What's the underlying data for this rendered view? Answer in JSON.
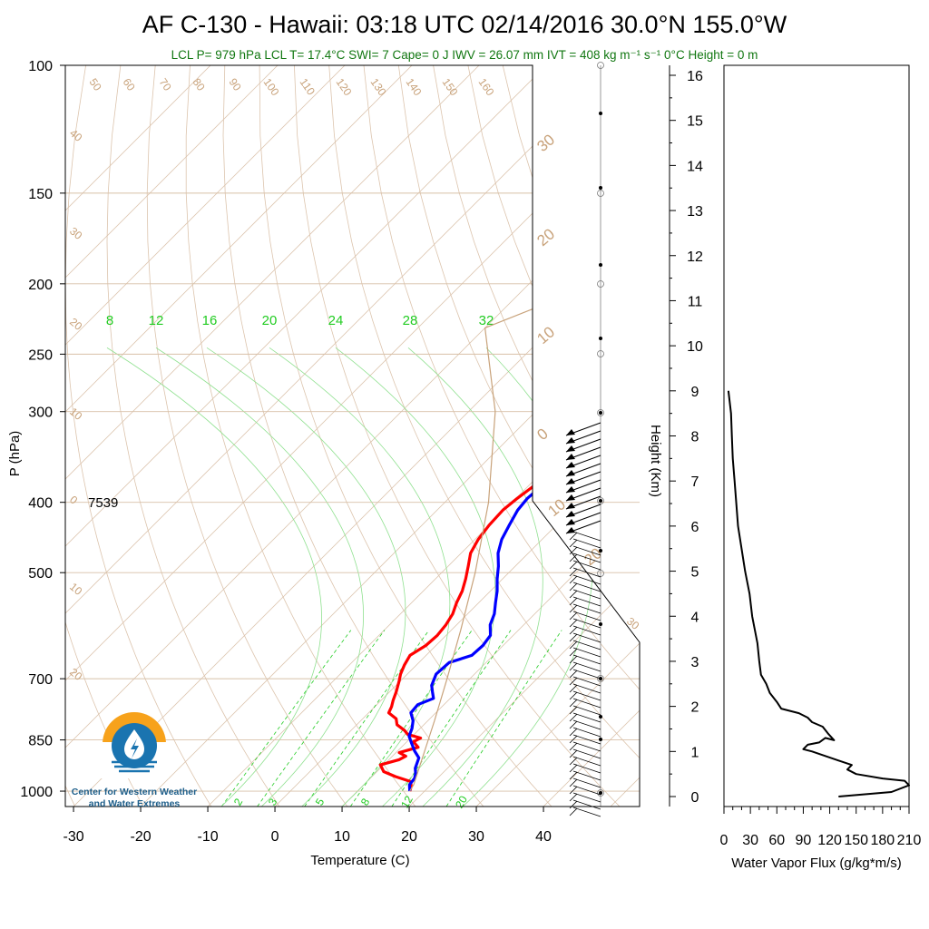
{
  "title": "AF C-130 - Hawaii: 03:18 UTC 02/14/2016  30.0°N 155.0°W",
  "subtitle": "LCL P= 979 hPa  LCL T= 17.4°C  SWI= 7  Cape= 0 J  IWV = 26.07 mm  IVT = 408 kg m⁻¹ s⁻¹  0°C Height = 0 m",
  "annotation_7539": "7539",
  "logo_text_line1": "Center for Western Weather",
  "logo_text_line2": "and Water Extremes",
  "colors": {
    "temperature": "#ff0000",
    "dewpoint": "#0000ff",
    "parcel": "#c8a27a",
    "mixing_ratio": "#22cc22",
    "flux": "#000000"
  },
  "chart_data": [
    {
      "type": "line",
      "title": "AF C-130 - Hawaii: 03:18 UTC 02/14/2016  30.0°N 155.0°W",
      "xlabel": "Temperature (C)",
      "ylabel": "P (hPa)",
      "x_ticks": [
        "-30",
        "-20",
        "-10",
        "0",
        "10",
        "20",
        "30",
        "40"
      ],
      "y_ticks": [
        "100",
        "150",
        "200",
        "250",
        "300",
        "400",
        "500",
        "700",
        "850",
        "1000"
      ],
      "y_scale": "log",
      "xlim": [
        -33,
        52
      ],
      "ylim": [
        1050,
        100
      ],
      "right_axis": {
        "label": "Height (Km)",
        "ticks": [
          "0",
          "1",
          "2",
          "3",
          "4",
          "5",
          "6",
          "7",
          "8",
          "9",
          "10",
          "11",
          "12",
          "13",
          "14",
          "15",
          "16"
        ]
      },
      "dry_adiabat_labels": [
        "50",
        "60",
        "70",
        "80",
        "90",
        "100",
        "110",
        "120",
        "130",
        "140",
        "150",
        "160"
      ],
      "isotherm_labels": [
        "40",
        "30",
        "20",
        "10",
        "0",
        "10",
        "20",
        "30"
      ],
      "mixing_ratio_labels_top": [
        "8",
        "12",
        "16",
        "20",
        "24",
        "28",
        "32"
      ],
      "mixing_ratio_labels_bottom": [
        "2",
        "3",
        "5",
        "8",
        "12",
        "20"
      ],
      "series": [
        {
          "name": "Temperature",
          "points": [
            [
              17.8,
              1000
            ],
            [
              17.3,
              985
            ],
            [
              16.5,
              970
            ],
            [
              13.5,
              955
            ],
            [
              11.0,
              940
            ],
            [
              9.5,
              920
            ],
            [
              11.5,
              905
            ],
            [
              12.0,
              895
            ],
            [
              10.5,
              885
            ],
            [
              12.5,
              870
            ],
            [
              11.0,
              855
            ],
            [
              11.5,
              845
            ],
            [
              9.0,
              835
            ],
            [
              8.0,
              825
            ],
            [
              6.0,
              810
            ],
            [
              5.0,
              795
            ],
            [
              3.0,
              780
            ],
            [
              2.5,
              765
            ],
            [
              1.8,
              750
            ],
            [
              1.0,
              730
            ],
            [
              -0.2,
              705
            ],
            [
              -1.0,
              690
            ],
            [
              -1.8,
              670
            ],
            [
              -2.4,
              650
            ],
            [
              -1.5,
              630
            ],
            [
              -1.3,
              610
            ],
            [
              -1.6,
              590
            ],
            [
              -2.2,
              570
            ],
            [
              -3.3,
              550
            ],
            [
              -4.2,
              530
            ],
            [
              -5.5,
              510
            ],
            [
              -7.0,
              490
            ],
            [
              -8.6,
              470
            ],
            [
              -9.5,
              450
            ],
            [
              -10.0,
              430
            ],
            [
              -10.2,
              410
            ],
            [
              -9.8,
              395
            ],
            [
              -9.2,
              380
            ],
            [
              -9.0,
              365
            ],
            [
              -9.4,
              350
            ],
            [
              -10.4,
              335
            ],
            [
              -11.2,
              322
            ],
            [
              -10.9,
              312
            ],
            [
              -11.5,
              305
            ]
          ]
        },
        {
          "name": "Dewpoint",
          "points": [
            [
              17.8,
              1000
            ],
            [
              16.8,
              980
            ],
            [
              16.6,
              960
            ],
            [
              16.0,
              945
            ],
            [
              15.2,
              930
            ],
            [
              14.2,
              900
            ],
            [
              12.5,
              880
            ],
            [
              11.0,
              860
            ],
            [
              9.5,
              840
            ],
            [
              8.8,
              820
            ],
            [
              7.8,
              800
            ],
            [
              6.3,
              780
            ],
            [
              6.1,
              760
            ],
            [
              7.5,
              745
            ],
            [
              6.4,
              730
            ],
            [
              5.3,
              715
            ],
            [
              4.3,
              690
            ],
            [
              4.5,
              665
            ],
            [
              6.8,
              650
            ],
            [
              7.0,
              630
            ],
            [
              6.6,
              610
            ],
            [
              5.0,
              590
            ],
            [
              4.0,
              570
            ],
            [
              2.5,
              550
            ],
            [
              1.0,
              530
            ],
            [
              -0.8,
              510
            ],
            [
              -2.5,
              490
            ],
            [
              -4.5,
              470
            ],
            [
              -6.0,
              450
            ],
            [
              -7.0,
              430
            ],
            [
              -8.0,
              410
            ],
            [
              -8.3,
              395
            ],
            [
              -8.0,
              380
            ],
            [
              -8.3,
              365
            ],
            [
              -9.2,
              350
            ],
            [
              -10.2,
              335
            ],
            [
              -10.8,
              322
            ],
            [
              -11.6,
              310
            ],
            [
              -12.2,
              305
            ]
          ]
        },
        {
          "name": "Parcel",
          "points": [
            [
              17.8,
              1000
            ],
            [
              17.4,
              979
            ],
            [
              11.0,
              800
            ],
            [
              6.6,
              700
            ],
            [
              1.4,
              600
            ],
            [
              -5.0,
              500
            ],
            [
              -13.5,
              400
            ],
            [
              -26.0,
              300
            ],
            [
              -40.0,
              230
            ],
            [
              -30.0,
              200
            ],
            [
              -6.0,
              100
            ]
          ]
        }
      ]
    },
    {
      "type": "line",
      "xlabel": "Water Vapor Flux (g/kg*m/s)",
      "ylabel": "Height (Km)",
      "x_ticks": [
        "0",
        "30",
        "60",
        "90",
        "120",
        "150",
        "180",
        "210"
      ],
      "xlim": [
        0,
        210
      ],
      "ylim": [
        -0.3,
        16.4
      ],
      "series": [
        {
          "name": "Water Vapor Flux",
          "points": [
            [
              130,
              0
            ],
            [
              160,
              0.05
            ],
            [
              190,
              0.1
            ],
            [
              210,
              0.25
            ],
            [
              205,
              0.35
            ],
            [
              180,
              0.4
            ],
            [
              150,
              0.5
            ],
            [
              140,
              0.6
            ],
            [
              145,
              0.7
            ],
            [
              130,
              0.8
            ],
            [
              115,
              0.9
            ],
            [
              100,
              1.0
            ],
            [
              90,
              1.05
            ],
            [
              95,
              1.15
            ],
            [
              108,
              1.2
            ],
            [
              115,
              1.3
            ],
            [
              125,
              1.25
            ],
            [
              118,
              1.4
            ],
            [
              112,
              1.55
            ],
            [
              100,
              1.65
            ],
            [
              95,
              1.75
            ],
            [
              85,
              1.85
            ],
            [
              65,
              1.95
            ],
            [
              60,
              2.1
            ],
            [
              52,
              2.3
            ],
            [
              48,
              2.5
            ],
            [
              42,
              2.7
            ],
            [
              40,
              3.0
            ],
            [
              38,
              3.4
            ],
            [
              35,
              3.7
            ],
            [
              32,
              4.0
            ],
            [
              29,
              4.5
            ],
            [
              24,
              5.0
            ],
            [
              20,
              5.5
            ],
            [
              16,
              6.0
            ],
            [
              14,
              6.5
            ],
            [
              12,
              7.0
            ],
            [
              10,
              7.5
            ],
            [
              9,
              8.0
            ],
            [
              8,
              8.5
            ],
            [
              5,
              9.0
            ]
          ]
        }
      ]
    }
  ]
}
